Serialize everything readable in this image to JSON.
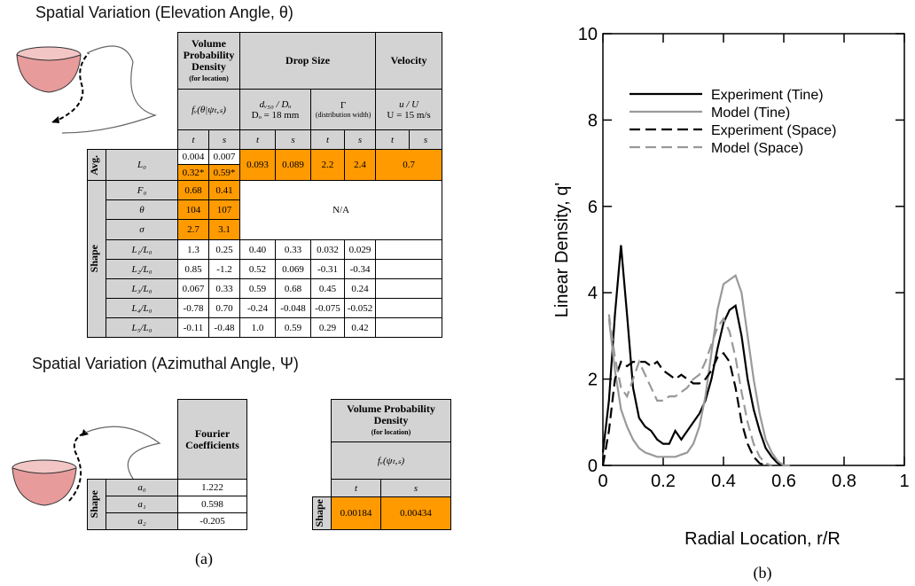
{
  "panel_a": {
    "label": "(a)",
    "title_elevation": "Spatial Variation (Elevation Angle, θ)",
    "title_azimuthal": "Spatial Variation (Azimuthal Angle, Ψ)",
    "table1": {
      "header": {
        "vpd": "Volume Probability Density",
        "vpd_note": "(for location)",
        "drop_size": "Drop Size",
        "velocity": "Velocity",
        "vpd_var": "fᵥ(θ|ψₜ,ₛ)",
        "d_ratio": "dᵥ₅₀ / Dₒ",
        "d_o": "Dₒ = 18 mm",
        "gamma": "Γ",
        "gamma_note": "(distribution width)",
        "u_ratio": "u / U",
        "u_value": "U = 15 m/s",
        "sub": [
          "t",
          "s",
          "t",
          "s",
          "t",
          "s",
          "t",
          "s"
        ]
      },
      "avg_label": "Avg.",
      "shape_label": "Shape",
      "avg": {
        "label": "L₀",
        "row1": [
          "0.004",
          "0.007"
        ],
        "row2": [
          "0.32*",
          "0.59*"
        ],
        "drop": [
          "0.093",
          "0.089",
          "2.2",
          "2.4"
        ],
        "velocity": "0.7"
      },
      "shape_rows": [
        {
          "label": "F₀",
          "values": [
            "0.68",
            "0.41"
          ]
        },
        {
          "label": "θ",
          "values": [
            "104",
            "107"
          ]
        },
        {
          "label": "σ",
          "values": [
            "2.7",
            "3.1"
          ]
        }
      ],
      "na": "N/A",
      "coef_rows": [
        {
          "label": "L₁/L₀",
          "values": [
            "1.3",
            "0.25",
            "0.40",
            "0.33",
            "0.032",
            "0.029"
          ]
        },
        {
          "label": "L₂/L₀",
          "values": [
            "0.85",
            "-1.2",
            "0.52",
            "0.069",
            "-0.31",
            "-0.34"
          ]
        },
        {
          "label": "L₃/L₀",
          "values": [
            "0.067",
            "0.33",
            "0.59",
            "0.68",
            "0.45",
            "0.24"
          ]
        },
        {
          "label": "L₄/L₀",
          "values": [
            "-0.78",
            "0.70",
            "-0.24",
            "-0.048",
            "-0.075",
            "-0.052"
          ]
        },
        {
          "label": "L₅/L₀",
          "values": [
            "-0.11",
            "-0.48",
            "1.0",
            "0.59",
            "0.29",
            "0.42"
          ]
        }
      ]
    },
    "table2": {
      "header": "Fourier Coefficients",
      "shape_label": "Shape",
      "rows": [
        {
          "label": "a₀",
          "value": "1.222"
        },
        {
          "label": "a₁",
          "value": "0.598"
        },
        {
          "label": "a₂",
          "value": "-0.205"
        }
      ]
    },
    "table3": {
      "header": "Volume Probability Density",
      "header_note": "(for location)",
      "var": "fᵥ(ψₜ,ₛ)",
      "sub": [
        "t",
        "s"
      ],
      "shape_label": "Shape",
      "values": [
        "0.00184",
        "0.00434"
      ]
    }
  },
  "chart_data": {
    "type": "line",
    "panel_label": "(b)",
    "x_label": "Radial Location, r/R",
    "y_label": "Linear Density, q'",
    "x": [
      0,
      0.02,
      0.04,
      0.06,
      0.08,
      0.1,
      0.12,
      0.14,
      0.16,
      0.18,
      0.2,
      0.22,
      0.24,
      0.26,
      0.28,
      0.3,
      0.32,
      0.34,
      0.36,
      0.38,
      0.4,
      0.42,
      0.44,
      0.46,
      0.48,
      0.5,
      0.52,
      0.54,
      0.56,
      0.58,
      0.6,
      0.62
    ],
    "series": [
      {
        "name": "Experiment (Tine)",
        "color": "#000000",
        "linestyle": "solid",
        "values": [
          0.3,
          1.5,
          3.5,
          5.1,
          3.5,
          1.8,
          1.1,
          0.9,
          0.8,
          0.6,
          0.5,
          0.5,
          0.8,
          0.6,
          0.8,
          1.0,
          1.2,
          1.5,
          2.0,
          2.7,
          3.3,
          3.6,
          3.7,
          3.0,
          2.0,
          1.3,
          0.8,
          0.4,
          0.2,
          0.05,
          0,
          null
        ]
      },
      {
        "name": "Model (Tine)",
        "color": "#999999",
        "linestyle": "solid",
        "values": [
          null,
          3.4,
          2.2,
          1.3,
          0.9,
          0.6,
          0.4,
          0.3,
          0.25,
          0.2,
          0.2,
          0.2,
          0.2,
          0.25,
          0.3,
          0.5,
          0.9,
          1.6,
          2.6,
          3.6,
          4.2,
          4.3,
          4.4,
          4.0,
          3.0,
          2.0,
          1.2,
          0.6,
          0.3,
          0.1,
          0,
          0
        ]
      },
      {
        "name": "Experiment (Space)",
        "color": "#000000",
        "linestyle": "dashed",
        "values": [
          0,
          0.8,
          2.0,
          2.4,
          2.3,
          2.4,
          2.4,
          2.4,
          2.3,
          2.4,
          2.2,
          2.1,
          2.0,
          2.1,
          2.0,
          1.9,
          1.9,
          2.0,
          2.2,
          2.5,
          2.6,
          2.4,
          1.8,
          1.0,
          0.5,
          0.2,
          0.05,
          0,
          null,
          null,
          null,
          null
        ]
      },
      {
        "name": "Model (Space)",
        "color": "#999999",
        "linestyle": "dashed",
        "values": [
          null,
          3.5,
          2.5,
          1.8,
          1.6,
          2.0,
          2.4,
          2.1,
          1.8,
          1.5,
          1.5,
          1.6,
          1.6,
          1.7,
          1.8,
          2.0,
          2.1,
          2.4,
          2.8,
          3.2,
          3.4,
          3.1,
          2.5,
          1.7,
          1.0,
          0.5,
          0.2,
          0.05,
          0,
          null,
          null,
          null
        ]
      }
    ],
    "xlim": [
      0,
      1
    ],
    "ylim": [
      0,
      10
    ],
    "xticks": [
      0,
      0.2,
      0.4,
      0.6,
      0.8,
      1
    ],
    "yticks": [
      0,
      2,
      4,
      6,
      8,
      10
    ],
    "legend": "upper left"
  }
}
